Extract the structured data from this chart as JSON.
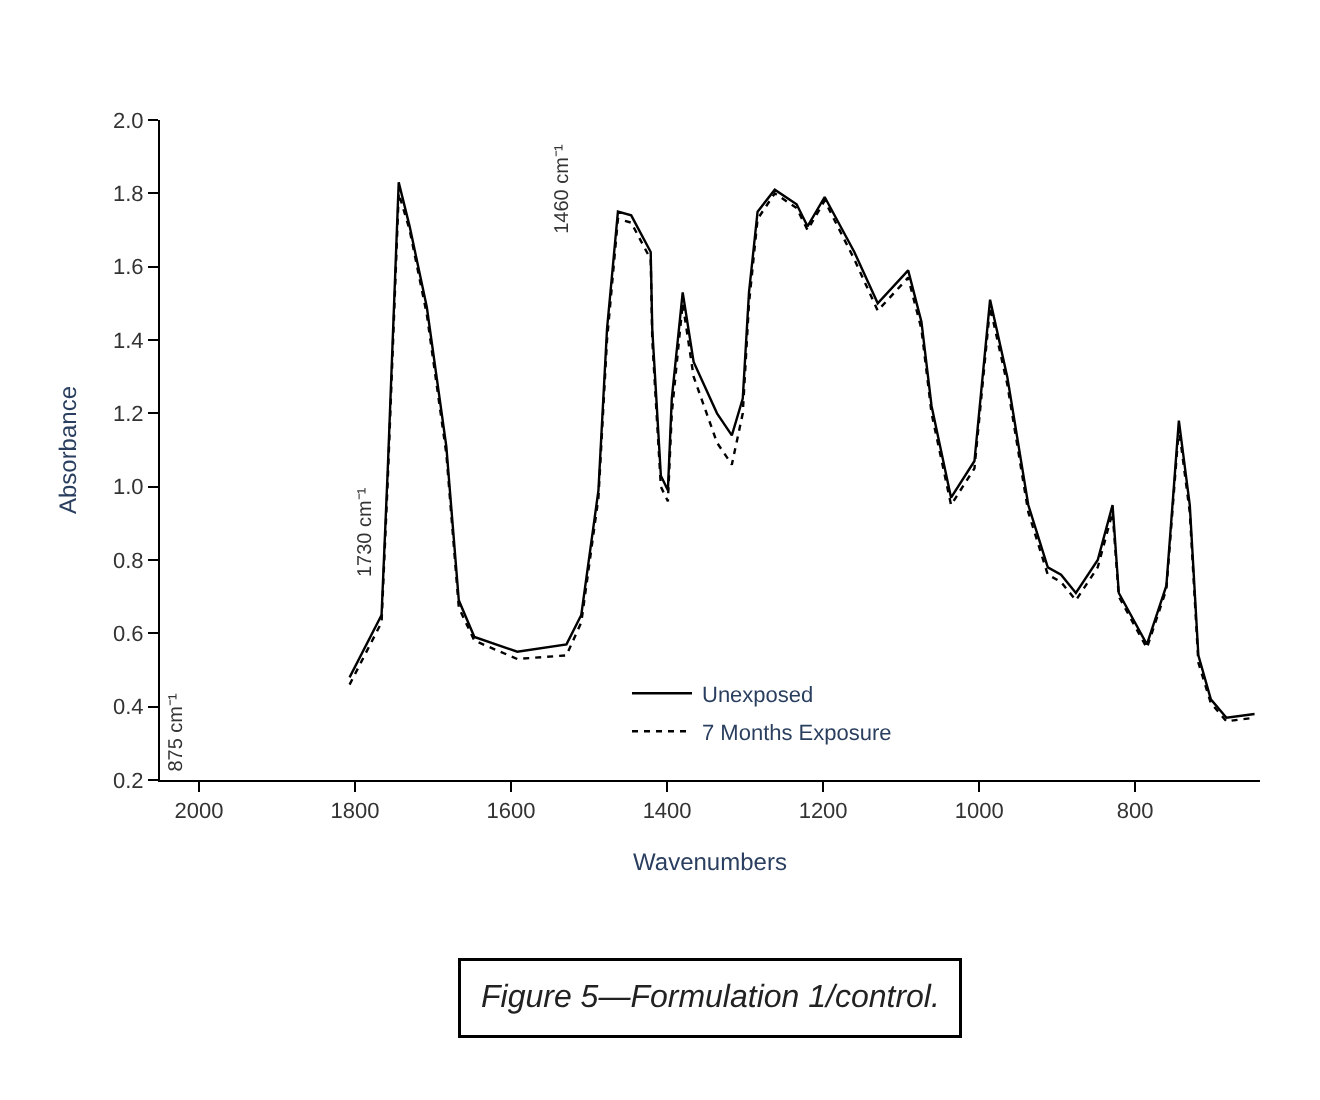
{
  "chart_data": {
    "type": "line",
    "xlabel": "Wavenumbers",
    "ylabel": "Absorbance",
    "x": [
      1807,
      1766,
      1758,
      1744,
      1730,
      1708,
      1683,
      1667,
      1647,
      1592,
      1529,
      1510,
      1488,
      1477,
      1463,
      1446,
      1421,
      1419,
      1408,
      1399,
      1394,
      1380,
      1366,
      1336,
      1317,
      1303,
      1295,
      1284,
      1262,
      1234,
      1220,
      1198,
      1160,
      1130,
      1091,
      1074,
      1061,
      1036,
      1006,
      986,
      964,
      937,
      912,
      895,
      876,
      848,
      829,
      821,
      785,
      760,
      744,
      730,
      719,
      703,
      683,
      647
    ],
    "series": [
      {
        "name": "Unexposed",
        "color": "#000000",
        "line_style": "solid",
        "values": [
          0.48,
          0.65,
          1.05,
          1.83,
          1.71,
          1.49,
          1.11,
          0.69,
          0.59,
          0.55,
          0.57,
          0.65,
          0.99,
          1.43,
          1.75,
          1.74,
          1.64,
          1.43,
          1.03,
          0.99,
          1.24,
          1.53,
          1.34,
          1.2,
          1.14,
          1.24,
          1.53,
          1.75,
          1.81,
          1.77,
          1.71,
          1.79,
          1.64,
          1.5,
          1.59,
          1.45,
          1.22,
          0.97,
          1.07,
          1.51,
          1.3,
          0.95,
          0.78,
          0.76,
          0.71,
          0.8,
          0.95,
          0.71,
          0.57,
          0.73,
          1.18,
          0.95,
          0.54,
          0.42,
          0.37,
          0.38
        ]
      },
      {
        "name": "7 Months Exposure",
        "color": "#000000",
        "line_style": "dotted",
        "values": [
          0.46,
          0.63,
          1.02,
          1.8,
          1.7,
          1.47,
          1.09,
          0.67,
          0.58,
          0.53,
          0.54,
          0.63,
          0.97,
          1.4,
          1.73,
          1.72,
          1.62,
          1.4,
          1.0,
          0.96,
          1.2,
          1.5,
          1.3,
          1.12,
          1.06,
          1.2,
          1.5,
          1.73,
          1.8,
          1.76,
          1.7,
          1.78,
          1.62,
          1.48,
          1.57,
          1.43,
          1.2,
          0.95,
          1.05,
          1.49,
          1.28,
          0.93,
          0.76,
          0.74,
          0.69,
          0.78,
          0.93,
          0.7,
          0.56,
          0.72,
          1.16,
          0.93,
          0.52,
          0.41,
          0.36,
          0.37
        ]
      }
    ],
    "xlim": [
      2050,
      640
    ],
    "xticks": [
      2000,
      1800,
      1600,
      1400,
      1200,
      1000,
      800
    ],
    "ylim": [
      0.2,
      2.0
    ],
    "yticks": [
      0.2,
      0.4,
      0.6,
      0.8,
      {
        "value": 1,
        "label": "1.0"
      },
      1.2,
      1.4,
      1.6,
      1.8,
      {
        "value": 2,
        "label": "2.0"
      }
    ],
    "legend": "bottom",
    "marker": "none",
    "annotations": [
      "1730 cm⁻¹",
      "1460 cm⁻¹",
      "875 cm⁻¹",
      "Figure 5—Formulation 1/control."
    ]
  }
}
